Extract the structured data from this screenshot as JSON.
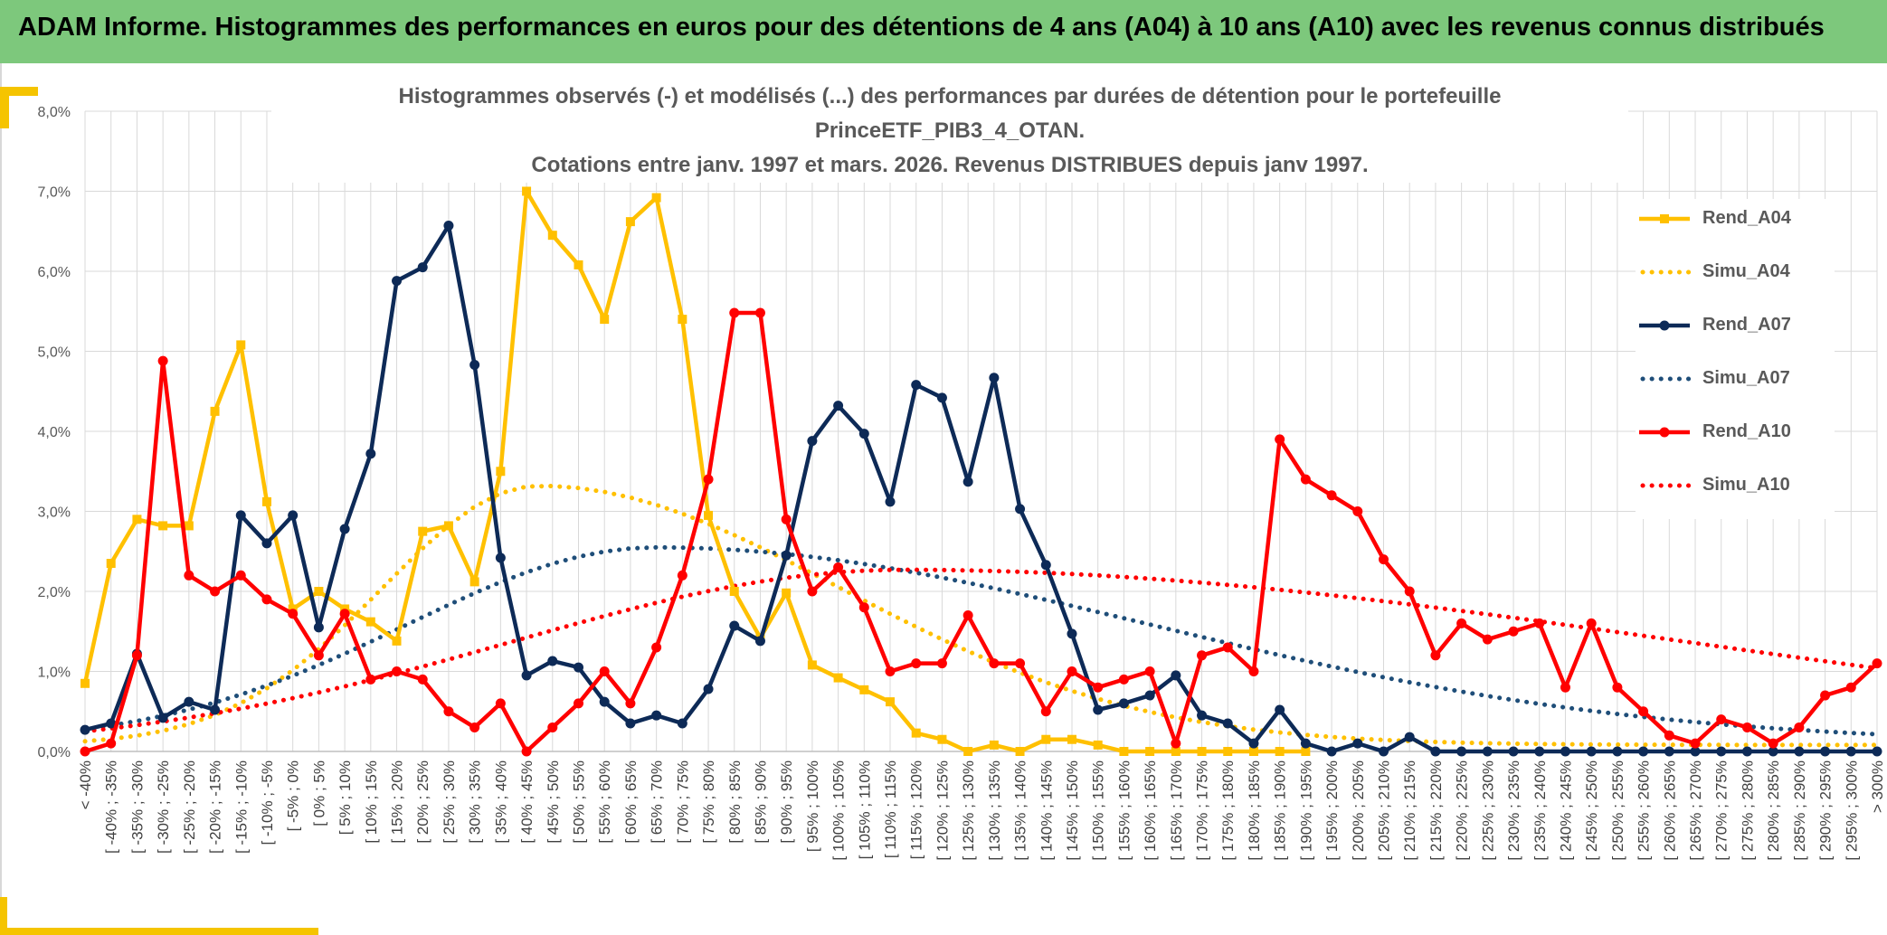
{
  "header": {
    "title": "ADAM Informe. Histogrammes des performances en euros pour des détentions de 4 ans (A04) à 10 ans (A10) avec les revenus connus distribués"
  },
  "chart_data": {
    "type": "line",
    "title_line1": "Histogrammes observés (-) et modélisés (...) des performances par durées de détention pour le portefeuille PrinceETF_PIB3_4_OTAN.",
    "title_line2": "Cotations entre janv. 1997 et mars. 2026. Revenus DISTRIBUES depuis janv 1997.",
    "ylim": [
      0,
      8
    ],
    "yticks": [
      "0,0%",
      "1,0%",
      "2,0%",
      "3,0%",
      "4,0%",
      "5,0%",
      "6,0%",
      "7,0%",
      "8,0%"
    ],
    "grid": true,
    "legend_position": "right",
    "categories": [
      "< -40%",
      "[ -40% ; -35%",
      "[ -35% ; -30%",
      "[ -30% ; -25%",
      "[ -25% ; -20%",
      "[ -20% ; -15%",
      "[ -15% ; -10%",
      "[ -10% ; -5%",
      "[ -5% ; 0%",
      "[ 0% ; 5%",
      "[ 5% ; 10%",
      "[ 10% ; 15%",
      "[ 15% ; 20%",
      "[ 20% ; 25%",
      "[ 25% ; 30%",
      "[ 30% ; 35%",
      "[ 35% ; 40%",
      "[ 40% ; 45%",
      "[ 45% ; 50%",
      "[ 50% ; 55%",
      "[ 55% ; 60%",
      "[ 60% ; 65%",
      "[ 65% ; 70%",
      "[ 70% ; 75%",
      "[ 75% ; 80%",
      "[ 80% ; 85%",
      "[ 85% ; 90%",
      "[ 90% ; 95%",
      "[ 95% ; 100%",
      "[ 100% ; 105%",
      "[ 105% ; 110%",
      "[ 110% ; 115%",
      "[ 115% ; 120%",
      "[ 120% ; 125%",
      "[ 125% ; 130%",
      "[ 130% ; 135%",
      "[ 135% ; 140%",
      "[ 140% ; 145%",
      "[ 145% ; 150%",
      "[ 150% ; 155%",
      "[ 155% ; 160%",
      "[ 160% ; 165%",
      "[ 165% ; 170%",
      "[ 170% ; 175%",
      "[ 175% ; 180%",
      "[ 180% ; 185%",
      "[ 185% ; 190%",
      "[ 190% ; 195%",
      "[ 195% ; 200%",
      "[ 200% ; 205%",
      "[ 205% ; 210%",
      "[ 210% ; 215%",
      "[ 215% ; 220%",
      "[ 220% ; 225%",
      "[ 225% ; 230%",
      "[ 230% ; 235%",
      "[ 235% ; 240%",
      "[ 240% ; 245%",
      "[ 245% ; 250%",
      "[ 250% ; 255%",
      "[ 255% ; 260%",
      "[ 260% ; 265%",
      "[ 265% ; 270%",
      "[ 270% ; 275%",
      "[ 275% ; 280%",
      "[ 280% ; 285%",
      "[ 285% ; 290%",
      "[ 290% ; 295%",
      "[ 295% ; 300%",
      "> 300%"
    ],
    "series": [
      {
        "name": "Rend_A04",
        "color": "#ffc000",
        "style": "solid",
        "marker": "square",
        "values": [
          0.85,
          2.35,
          2.9,
          2.82,
          2.82,
          4.25,
          5.08,
          3.12,
          1.78,
          2.0,
          1.78,
          1.62,
          1.38,
          2.75,
          2.82,
          2.12,
          3.5,
          7.0,
          6.45,
          6.08,
          5.4,
          6.62,
          6.92,
          5.4,
          2.95,
          2.0,
          1.42,
          1.98,
          1.08,
          0.92,
          0.77,
          0.62,
          0.23,
          0.15,
          0.0,
          0.08,
          0.0,
          0.15,
          0.15,
          0.08,
          0.0,
          0.0,
          0.0,
          0.0,
          0.0,
          0.0,
          0.0,
          0.0,
          null,
          null,
          null,
          null,
          null,
          null,
          null,
          null,
          null,
          null,
          null,
          null,
          null,
          null,
          null,
          null,
          null,
          null,
          null,
          null,
          null,
          null
        ]
      },
      {
        "name": "Simu_A04",
        "color": "#ffc000",
        "style": "dotted",
        "mode": 44.8,
        "peak": 3.32,
        "s_left": 30.0,
        "s_right": 58.0,
        "floor": 0.08
      },
      {
        "name": "Rend_A07",
        "color": "#0d2a57",
        "style": "solid",
        "marker": "circle",
        "values": [
          0.27,
          0.35,
          1.22,
          0.42,
          0.62,
          0.52,
          2.95,
          2.6,
          2.95,
          1.55,
          2.78,
          3.72,
          5.88,
          6.05,
          6.57,
          4.83,
          2.42,
          0.95,
          1.13,
          1.05,
          0.62,
          0.35,
          0.45,
          0.35,
          0.78,
          1.57,
          1.38,
          2.45,
          3.88,
          4.32,
          3.97,
          3.12,
          4.58,
          4.42,
          3.37,
          4.67,
          3.03,
          2.33,
          1.47,
          0.52,
          0.6,
          0.7,
          0.95,
          0.45,
          0.35,
          0.1,
          0.52,
          0.1,
          0.0,
          0.1,
          0.0,
          0.18,
          0.0,
          0.0,
          0.0,
          0.0,
          0.0,
          0.0,
          0.0,
          0.0,
          0.0,
          0.0,
          0.0,
          0.0,
          0.0,
          0.0,
          0.0,
          0.0,
          0.0,
          0.0
        ]
      },
      {
        "name": "Simu_A07",
        "color": "#1f4e79",
        "style": "dotted",
        "mode": 67.5,
        "peak": 2.55,
        "s_left": 48.0,
        "s_right": 95.0,
        "floor": 0.1
      },
      {
        "name": "Rend_A10",
        "color": "#ff0000",
        "style": "solid",
        "marker": "circle",
        "values": [
          0.0,
          0.1,
          1.2,
          4.88,
          2.2,
          2.0,
          2.2,
          1.9,
          1.72,
          1.2,
          1.72,
          0.9,
          1.0,
          0.9,
          0.5,
          0.3,
          0.6,
          0.0,
          0.3,
          0.6,
          1.0,
          0.6,
          1.3,
          2.2,
          3.4,
          5.48,
          5.48,
          2.9,
          2.0,
          2.3,
          1.8,
          1.0,
          1.1,
          1.1,
          1.7,
          1.1,
          1.1,
          0.5,
          1.0,
          0.8,
          0.9,
          1.0,
          0.1,
          1.2,
          1.3,
          1.0,
          3.9,
          3.4,
          3.2,
          3.0,
          2.4,
          2.0,
          1.2,
          1.6,
          1.4,
          1.5,
          1.6,
          0.8,
          1.6,
          0.8,
          0.5,
          0.2,
          0.1,
          0.4,
          0.3,
          0.1,
          0.3,
          0.7,
          0.8,
          1.1
        ]
      },
      {
        "name": "Simu_A10",
        "color": "#ff0000",
        "style": "dotted",
        "mode": 115.0,
        "peak": 2.27,
        "s_left": 75.0,
        "s_right": 150.0,
        "floor": 0.0
      }
    ]
  }
}
